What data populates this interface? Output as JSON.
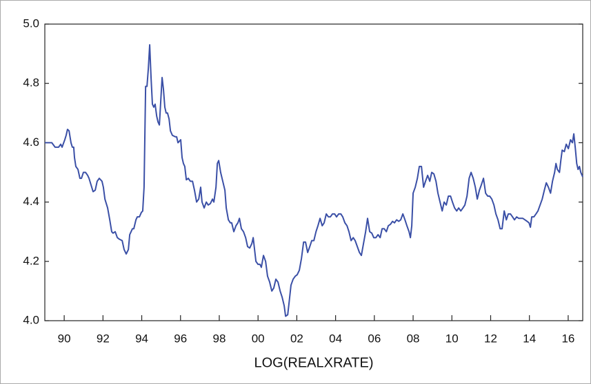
{
  "chart_data": {
    "type": "line",
    "title": "LOG(REALXRATE)",
    "xlim": [
      1989,
      2016.75
    ],
    "ylim": [
      4,
      5
    ],
    "yticks": [
      {
        "value": 4,
        "label": "4.0"
      },
      4.2,
      4.4,
      4.6,
      4.8,
      {
        "value": 5,
        "label": "5.0"
      }
    ],
    "xticks": [
      {
        "value": 1990,
        "label": "90"
      },
      {
        "value": 1992,
        "label": "92"
      },
      {
        "value": 1994,
        "label": "94"
      },
      {
        "value": 1996,
        "label": "96"
      },
      {
        "value": 1998,
        "label": "98"
      },
      {
        "value": 2000,
        "label": "00"
      },
      {
        "value": 2002,
        "label": "02"
      },
      {
        "value": 2004,
        "label": "04"
      },
      {
        "value": 2006,
        "label": "06"
      },
      {
        "value": 2008,
        "label": "08"
      },
      {
        "value": 2010,
        "label": "10"
      },
      {
        "value": 2012,
        "label": "12"
      },
      {
        "value": 2014,
        "label": "14"
      },
      {
        "value": 2016,
        "label": "16"
      }
    ],
    "grid": false,
    "color": "#3a4fa6",
    "x": [
      1989.0,
      1989.36,
      1989.53,
      1989.71,
      1989.82,
      1989.89,
      1990.03,
      1990.1,
      1990.17,
      1990.25,
      1990.35,
      1990.42,
      1990.49,
      1990.53,
      1990.6,
      1990.71,
      1990.81,
      1990.89,
      1990.99,
      1991.1,
      1991.21,
      1991.28,
      1991.42,
      1991.49,
      1991.6,
      1991.7,
      1991.81,
      1991.95,
      1992.02,
      1992.1,
      1992.24,
      1992.35,
      1992.45,
      1992.52,
      1992.63,
      1992.74,
      1992.84,
      1992.99,
      1993.09,
      1993.2,
      1993.31,
      1993.38,
      1993.45,
      1993.52,
      1993.59,
      1993.7,
      1993.77,
      1993.88,
      1993.98,
      1994.05,
      1994.12,
      1994.2,
      1994.27,
      1994.34,
      1994.41,
      1994.48,
      1994.55,
      1994.62,
      1994.69,
      1994.77,
      1994.84,
      1994.91,
      1994.98,
      1995.05,
      1995.12,
      1995.19,
      1995.26,
      1995.33,
      1995.41,
      1995.48,
      1995.58,
      1995.73,
      1995.8,
      1995.87,
      1996.01,
      1996.08,
      1996.15,
      1996.22,
      1996.3,
      1996.4,
      1996.51,
      1996.62,
      1996.72,
      1996.83,
      1996.94,
      1997.04,
      1997.11,
      1997.22,
      1997.33,
      1997.43,
      1997.54,
      1997.65,
      1997.72,
      1997.83,
      1997.9,
      1997.97,
      1998.07,
      1998.18,
      1998.29,
      1998.36,
      1998.47,
      1998.57,
      1998.64,
      1998.75,
      1998.86,
      1998.96,
      1999.04,
      1999.14,
      1999.25,
      1999.36,
      1999.46,
      1999.57,
      1999.68,
      1999.75,
      1999.82,
      1999.89,
      2000.0,
      2000.1,
      2000.17,
      2000.28,
      2000.39,
      2000.49,
      2000.6,
      2000.71,
      2000.81,
      2000.92,
      2001.03,
      2001.14,
      2001.24,
      2001.35,
      2001.42,
      2001.53,
      2001.6,
      2001.7,
      2001.81,
      2001.92,
      2002.02,
      2002.13,
      2002.24,
      2002.35,
      2002.45,
      2002.56,
      2002.67,
      2002.77,
      2002.88,
      2002.99,
      2003.09,
      2003.2,
      2003.31,
      2003.41,
      2003.52,
      2003.63,
      2003.73,
      2003.84,
      2003.95,
      2004.05,
      2004.16,
      2004.27,
      2004.37,
      2004.48,
      2004.59,
      2004.69,
      2004.8,
      2004.91,
      2005.01,
      2005.12,
      2005.23,
      2005.33,
      2005.44,
      2005.55,
      2005.65,
      2005.76,
      2005.87,
      2005.97,
      2006.08,
      2006.19,
      2006.3,
      2006.4,
      2006.51,
      2006.62,
      2006.72,
      2006.83,
      2006.94,
      2007.04,
      2007.15,
      2007.26,
      2007.36,
      2007.47,
      2007.58,
      2007.68,
      2007.79,
      2007.86,
      2007.93,
      2008.0,
      2008.11,
      2008.22,
      2008.32,
      2008.43,
      2008.54,
      2008.64,
      2008.75,
      2008.86,
      2008.96,
      2009.07,
      2009.18,
      2009.28,
      2009.39,
      2009.5,
      2009.6,
      2009.71,
      2009.82,
      2009.93,
      2010.03,
      2010.14,
      2010.25,
      2010.35,
      2010.46,
      2010.57,
      2010.67,
      2010.78,
      2010.89,
      2010.99,
      2011.1,
      2011.21,
      2011.31,
      2011.42,
      2011.53,
      2011.63,
      2011.74,
      2011.85,
      2011.95,
      2012.06,
      2012.17,
      2012.27,
      2012.38,
      2012.49,
      2012.59,
      2012.7,
      2012.81,
      2012.91,
      2013.02,
      2013.13,
      2013.23,
      2013.34,
      2013.45,
      2013.56,
      2013.66,
      2013.77,
      2013.88,
      2013.98,
      2014.05,
      2014.12,
      2014.23,
      2014.34,
      2014.44,
      2014.55,
      2014.66,
      2014.77,
      2014.87,
      2014.98,
      2015.09,
      2015.19,
      2015.3,
      2015.37,
      2015.44,
      2015.55,
      2015.62,
      2015.69,
      2015.8,
      2015.9,
      2016.01,
      2016.12,
      2016.22,
      2016.29,
      2016.37,
      2016.44,
      2016.51,
      2016.58,
      2016.65,
      2016.75
    ],
    "values": [
      4.6,
      4.6,
      4.585,
      4.585,
      4.595,
      4.585,
      4.61,
      4.625,
      4.645,
      4.64,
      4.6,
      4.585,
      4.585,
      4.55,
      4.52,
      4.51,
      4.48,
      4.48,
      4.5,
      4.5,
      4.49,
      4.48,
      4.45,
      4.435,
      4.44,
      4.47,
      4.48,
      4.47,
      4.45,
      4.41,
      4.38,
      4.34,
      4.3,
      4.295,
      4.3,
      4.28,
      4.275,
      4.27,
      4.24,
      4.225,
      4.24,
      4.29,
      4.3,
      4.31,
      4.31,
      4.34,
      4.35,
      4.35,
      4.365,
      4.37,
      4.45,
      4.79,
      4.79,
      4.85,
      4.93,
      4.82,
      4.73,
      4.72,
      4.73,
      4.69,
      4.67,
      4.66,
      4.74,
      4.82,
      4.78,
      4.72,
      4.7,
      4.7,
      4.68,
      4.64,
      4.625,
      4.62,
      4.62,
      4.6,
      4.61,
      4.55,
      4.53,
      4.52,
      4.475,
      4.48,
      4.47,
      4.47,
      4.44,
      4.4,
      4.41,
      4.45,
      4.4,
      4.38,
      4.4,
      4.39,
      4.395,
      4.41,
      4.4,
      4.45,
      4.53,
      4.54,
      4.5,
      4.47,
      4.44,
      4.38,
      4.34,
      4.33,
      4.33,
      4.3,
      4.32,
      4.33,
      4.345,
      4.31,
      4.3,
      4.28,
      4.25,
      4.245,
      4.26,
      4.28,
      4.24,
      4.2,
      4.19,
      4.19,
      4.18,
      4.22,
      4.2,
      4.15,
      4.13,
      4.1,
      4.11,
      4.14,
      4.13,
      4.1,
      4.08,
      4.05,
      4.015,
      4.02,
      4.06,
      4.12,
      4.14,
      4.15,
      4.155,
      4.17,
      4.21,
      4.265,
      4.265,
      4.23,
      4.25,
      4.27,
      4.27,
      4.3,
      4.32,
      4.345,
      4.32,
      4.33,
      4.36,
      4.35,
      4.35,
      4.36,
      4.36,
      4.35,
      4.36,
      4.36,
      4.35,
      4.33,
      4.32,
      4.3,
      4.27,
      4.28,
      4.27,
      4.25,
      4.23,
      4.22,
      4.26,
      4.3,
      4.345,
      4.3,
      4.295,
      4.28,
      4.28,
      4.29,
      4.28,
      4.31,
      4.31,
      4.3,
      4.32,
      4.325,
      4.335,
      4.33,
      4.34,
      4.335,
      4.34,
      4.36,
      4.34,
      4.32,
      4.3,
      4.28,
      4.32,
      4.43,
      4.45,
      4.48,
      4.52,
      4.52,
      4.45,
      4.47,
      4.49,
      4.47,
      4.5,
      4.495,
      4.47,
      4.43,
      4.4,
      4.37,
      4.4,
      4.39,
      4.42,
      4.42,
      4.4,
      4.38,
      4.37,
      4.38,
      4.37,
      4.38,
      4.39,
      4.42,
      4.48,
      4.5,
      4.48,
      4.45,
      4.41,
      4.44,
      4.46,
      4.48,
      4.43,
      4.42,
      4.42,
      4.41,
      4.39,
      4.36,
      4.34,
      4.31,
      4.31,
      4.37,
      4.34,
      4.36,
      4.36,
      4.35,
      4.34,
      4.35,
      4.345,
      4.345,
      4.345,
      4.34,
      4.335,
      4.33,
      4.315,
      4.35,
      4.35,
      4.36,
      4.37,
      4.39,
      4.41,
      4.44,
      4.465,
      4.45,
      4.43,
      4.47,
      4.5,
      4.53,
      4.51,
      4.5,
      4.54,
      4.575,
      4.57,
      4.595,
      4.58,
      4.61,
      4.6,
      4.63,
      4.58,
      4.53,
      4.51,
      4.52,
      4.5,
      4.485
    ]
  }
}
